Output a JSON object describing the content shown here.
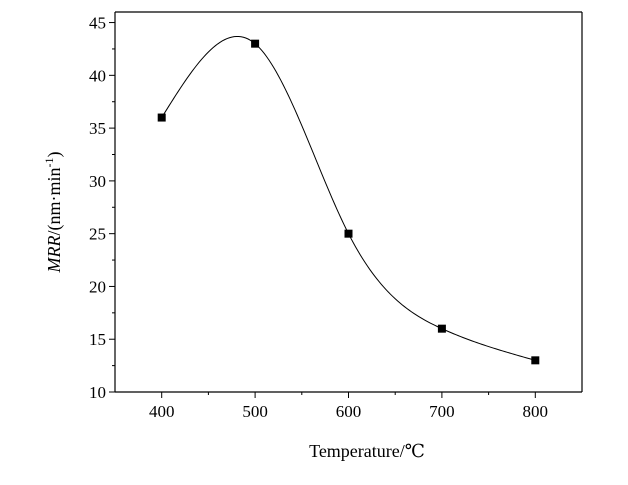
{
  "chart_data": {
    "type": "line",
    "x": [
      400,
      500,
      600,
      700,
      800
    ],
    "series": [
      {
        "values": [
          36,
          43,
          25,
          16,
          13
        ],
        "marker": "square",
        "line": "smooth",
        "color": "#000000"
      }
    ],
    "xlabel": "Temperature/℃",
    "ylabel": {
      "italic": "MRR",
      "prefix": "/(nm·min",
      "superscript": "-1",
      "suffix": ")"
    },
    "xlim": [
      350,
      850
    ],
    "ylim": [
      10,
      46
    ],
    "xticks": [
      400,
      500,
      600,
      700,
      800
    ],
    "yticks": [
      10,
      15,
      20,
      25,
      30,
      35,
      40,
      45
    ],
    "grid": false,
    "legend": "none"
  }
}
